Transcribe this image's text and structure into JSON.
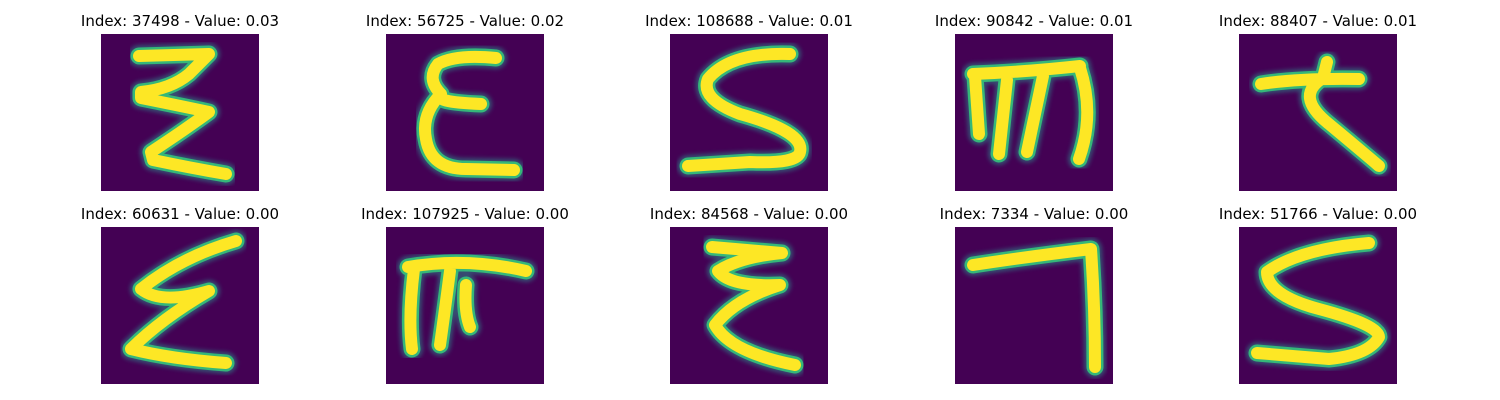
{
  "figure": {
    "panels": [
      {
        "index": "37498",
        "value": "0.03",
        "title": "Index: 37498 - Value: 0.03"
      },
      {
        "index": "56725",
        "value": "0.02",
        "title": "Index: 56725 - Value: 0.02"
      },
      {
        "index": "108688",
        "value": "0.01",
        "title": "Index: 108688 - Value: 0.01"
      },
      {
        "index": "90842",
        "value": "0.01",
        "title": "Index: 90842 - Value: 0.01"
      },
      {
        "index": "88407",
        "value": "0.01",
        "title": "Index: 88407 - Value: 0.01"
      },
      {
        "index": "60631",
        "value": "0.00",
        "title": "Index: 60631 - Value: 0.00"
      },
      {
        "index": "107925",
        "value": "0.00",
        "title": "Index: 107925 - Value: 0.00"
      },
      {
        "index": "84568",
        "value": "0.00",
        "title": "Index: 84568 - Value: 0.00"
      },
      {
        "index": "7334",
        "value": "0.00",
        "title": "Index: 7334 - Value: 0.00"
      },
      {
        "index": "51766",
        "value": "0.00",
        "title": "Index: 51766 - Value: 0.00"
      }
    ],
    "colormap": {
      "background": "#440154",
      "edge": "#35b779",
      "core": "#fde725"
    }
  }
}
